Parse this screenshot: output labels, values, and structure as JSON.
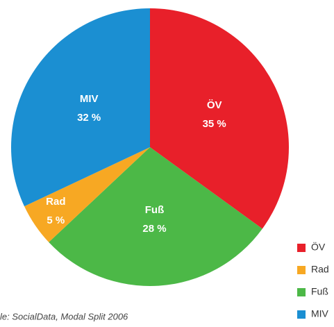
{
  "chart_data": {
    "type": "pie",
    "categories": [
      "ÖV",
      "Fuß",
      "Rad",
      "MIV"
    ],
    "values": [
      35,
      28,
      5,
      32
    ],
    "value_labels": [
      "35 %",
      "28 %",
      "5 %",
      "32 %"
    ],
    "colors": [
      "#e8202a",
      "#4cb847",
      "#f7a823",
      "#1b8fd2"
    ],
    "legend_order": [
      0,
      2,
      1,
      3
    ],
    "legend": "bottom-right",
    "source": "le: SocialData, Modal Split 2006"
  }
}
